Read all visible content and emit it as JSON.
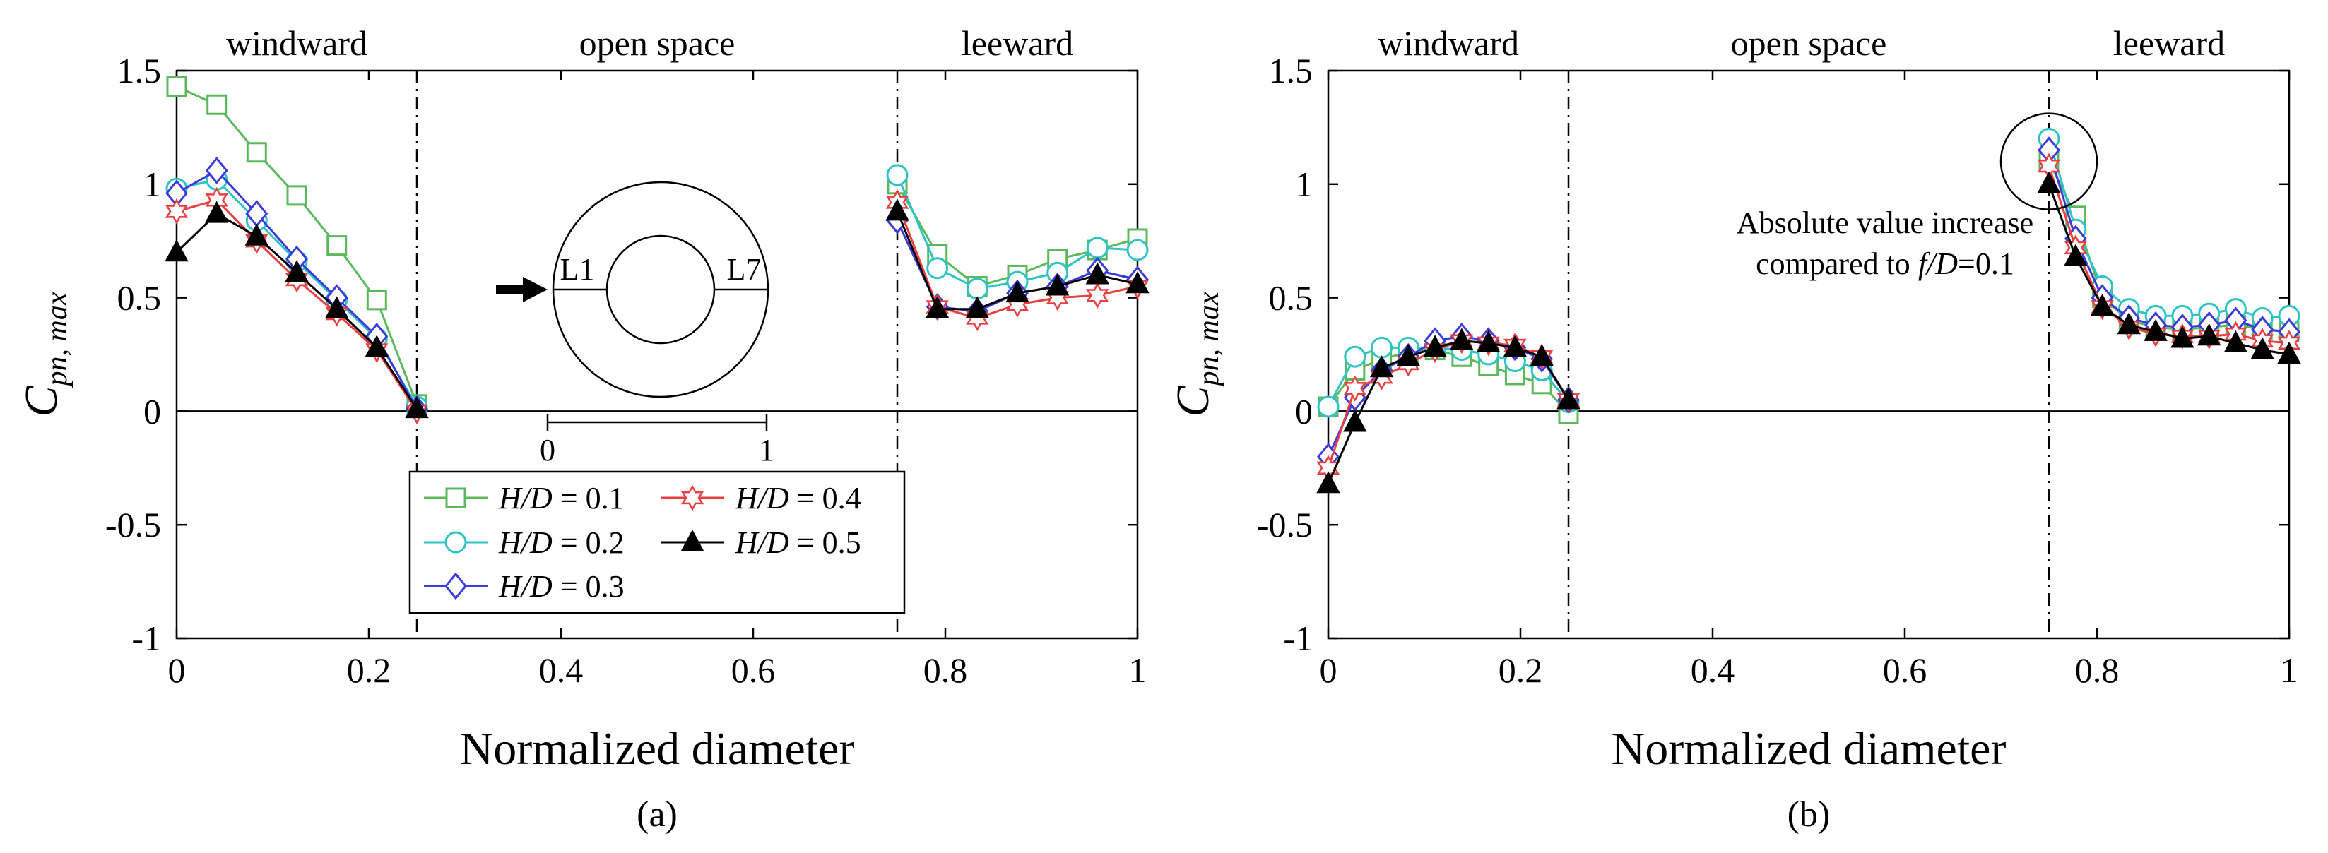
{
  "chart_data": [
    {
      "type": "line",
      "panel_label": "(a)",
      "xlabel": "Normalized diameter",
      "ylabel": {
        "base": "C",
        "sub": "pn, max"
      },
      "xlim": [
        0,
        1
      ],
      "ylim": [
        -1,
        1.5
      ],
      "xticks": [
        "0",
        "0.2",
        "0.4",
        "0.6",
        "0.8",
        "1"
      ],
      "yticks": [
        "-1",
        "-0.5",
        "0",
        "0.5",
        "1",
        "1.5"
      ],
      "regions": [
        "windward",
        "open space",
        "leeward"
      ],
      "dividers": [
        0.25,
        0.75
      ],
      "legend": {
        "var": "H/D",
        "eq": " = "
      },
      "inset": {
        "label_left": "L1",
        "label_right": "L7",
        "scale_0": "0",
        "scale_1": "1"
      },
      "series": [
        {
          "name": "H/D = 0.1",
          "value": "0.1",
          "color": "#5cb85c",
          "marker": "square",
          "x": [
            0,
            0.0417,
            0.0833,
            0.125,
            0.1667,
            0.2083,
            0.25,
            0.75,
            0.7917,
            0.8333,
            0.875,
            0.9167,
            0.9583,
            1.0
          ],
          "y": [
            1.43,
            1.35,
            1.14,
            0.95,
            0.73,
            0.49,
            0.03,
            1.0,
            0.69,
            0.55,
            0.6,
            0.67,
            0.71,
            0.76
          ]
        },
        {
          "name": "H/D = 0.2",
          "value": "0.2",
          "color": "#2ec4c4",
          "marker": "circle",
          "x": [
            0,
            0.0417,
            0.0833,
            0.125,
            0.1667,
            0.2083,
            0.25,
            0.75,
            0.7917,
            0.8333,
            0.875,
            0.9167,
            0.9583,
            1.0
          ],
          "y": [
            0.98,
            1.02,
            0.84,
            0.66,
            0.49,
            0.32,
            0.02,
            1.04,
            0.63,
            0.54,
            0.57,
            0.61,
            0.72,
            0.71
          ]
        },
        {
          "name": "H/D = 0.3",
          "value": "0.3",
          "color": "#3b3bdb",
          "marker": "diamond",
          "x": [
            0,
            0.0417,
            0.0833,
            0.125,
            0.1667,
            0.2083,
            0.25,
            0.75,
            0.7917,
            0.8333,
            0.875,
            0.9167,
            0.9583,
            1.0
          ],
          "y": [
            0.96,
            1.06,
            0.87,
            0.67,
            0.5,
            0.33,
            0.01,
            0.84,
            0.46,
            0.44,
            0.52,
            0.55,
            0.62,
            0.58
          ]
        },
        {
          "name": "H/D = 0.4",
          "value": "0.4",
          "color": "#e84040",
          "marker": "star",
          "x": [
            0,
            0.0417,
            0.0833,
            0.125,
            0.1667,
            0.2083,
            0.25,
            0.75,
            0.7917,
            0.8333,
            0.875,
            0.9167,
            0.9583,
            1.0
          ],
          "y": [
            0.88,
            0.93,
            0.75,
            0.58,
            0.43,
            0.27,
            0.0,
            0.92,
            0.46,
            0.41,
            0.47,
            0.5,
            0.51,
            0.55
          ]
        },
        {
          "name": "H/D = 0.5",
          "value": "0.5",
          "color": "#000000",
          "marker": "triangle",
          "x": [
            0,
            0.0417,
            0.0833,
            0.125,
            0.1667,
            0.2083,
            0.25,
            0.75,
            0.7917,
            0.8333,
            0.875,
            0.9167,
            0.9583,
            1.0
          ],
          "y": [
            0.7,
            0.87,
            0.77,
            0.61,
            0.45,
            0.28,
            0.01,
            0.88,
            0.45,
            0.45,
            0.52,
            0.55,
            0.6,
            0.56
          ]
        }
      ]
    },
    {
      "type": "line",
      "panel_label": "(b)",
      "xlabel": "Normalized diameter",
      "ylabel": {
        "base": "C",
        "sub": "pn, max"
      },
      "xlim": [
        0,
        1
      ],
      "ylim": [
        -1,
        1.5
      ],
      "xticks": [
        "0",
        "0.2",
        "0.4",
        "0.6",
        "0.8",
        "1"
      ],
      "yticks": [
        "-1",
        "-0.5",
        "0",
        "0.5",
        "1",
        "1.5"
      ],
      "regions": [
        "windward",
        "open space",
        "leeward"
      ],
      "dividers": [
        0.25,
        0.75
      ],
      "annotation": {
        "line1": "Absolute value increase",
        "line2_prefix": "compared to ",
        "line2_var": "f/D",
        "line2_suffix": "=0.1"
      },
      "series": [
        {
          "name": "H/D = 0.1",
          "color": "#5cb85c",
          "marker": "square",
          "x": [
            0,
            0.0278,
            0.0556,
            0.0833,
            0.1111,
            0.1389,
            0.1667,
            0.1944,
            0.2222,
            0.25,
            0.75,
            0.7778,
            0.8056,
            0.8333,
            0.8611,
            0.8889,
            0.9167,
            0.9444,
            0.9722,
            1.0
          ],
          "y": [
            0.02,
            0.18,
            0.23,
            0.26,
            0.27,
            0.24,
            0.2,
            0.16,
            0.12,
            -0.01,
            1.1,
            0.86,
            0.5,
            0.4,
            0.37,
            0.36,
            0.37,
            0.38,
            0.36,
            0.35
          ]
        },
        {
          "name": "H/D = 0.2",
          "color": "#2ec4c4",
          "marker": "circle",
          "x": [
            0,
            0.0278,
            0.0556,
            0.0833,
            0.1111,
            0.1389,
            0.1667,
            0.1944,
            0.2222,
            0.25,
            0.75,
            0.7778,
            0.8056,
            0.8333,
            0.8611,
            0.8889,
            0.9167,
            0.9444,
            0.9722,
            1.0
          ],
          "y": [
            0.02,
            0.24,
            0.28,
            0.28,
            0.28,
            0.27,
            0.25,
            0.22,
            0.18,
            0.04,
            1.2,
            0.8,
            0.55,
            0.45,
            0.42,
            0.42,
            0.43,
            0.45,
            0.41,
            0.42
          ]
        },
        {
          "name": "H/D = 0.3",
          "color": "#3b3bdb",
          "marker": "diamond",
          "x": [
            0,
            0.0278,
            0.0556,
            0.0833,
            0.1111,
            0.1389,
            0.1667,
            0.1944,
            0.2222,
            0.25,
            0.75,
            0.7778,
            0.8056,
            0.8333,
            0.8611,
            0.8889,
            0.9167,
            0.9444,
            0.9722,
            1.0
          ],
          "y": [
            -0.2,
            0.06,
            0.18,
            0.24,
            0.31,
            0.33,
            0.31,
            0.28,
            0.23,
            0.05,
            1.15,
            0.76,
            0.5,
            0.41,
            0.38,
            0.37,
            0.38,
            0.4,
            0.36,
            0.35
          ]
        },
        {
          "name": "H/D = 0.4",
          "color": "#e84040",
          "marker": "star",
          "x": [
            0,
            0.0278,
            0.0556,
            0.0833,
            0.1111,
            0.1389,
            0.1667,
            0.1944,
            0.2222,
            0.25,
            0.75,
            0.7778,
            0.8056,
            0.8333,
            0.8611,
            0.8889,
            0.9167,
            0.9444,
            0.9722,
            1.0
          ],
          "y": [
            -0.25,
            0.1,
            0.15,
            0.21,
            0.27,
            0.31,
            0.3,
            0.29,
            0.24,
            0.05,
            1.08,
            0.72,
            0.46,
            0.37,
            0.34,
            0.33,
            0.33,
            0.34,
            0.31,
            0.3
          ]
        },
        {
          "name": "H/D = 0.5",
          "color": "#000000",
          "marker": "triangle",
          "x": [
            0,
            0.0278,
            0.0556,
            0.0833,
            0.1111,
            0.1389,
            0.1667,
            0.1944,
            0.2222,
            0.25,
            0.75,
            0.7778,
            0.8056,
            0.8333,
            0.8611,
            0.8889,
            0.9167,
            0.9444,
            0.9722,
            1.0
          ],
          "y": [
            -0.32,
            -0.05,
            0.19,
            0.24,
            0.28,
            0.31,
            0.3,
            0.28,
            0.24,
            0.05,
            1.0,
            0.68,
            0.46,
            0.38,
            0.35,
            0.32,
            0.33,
            0.3,
            0.27,
            0.25
          ]
        }
      ]
    }
  ]
}
